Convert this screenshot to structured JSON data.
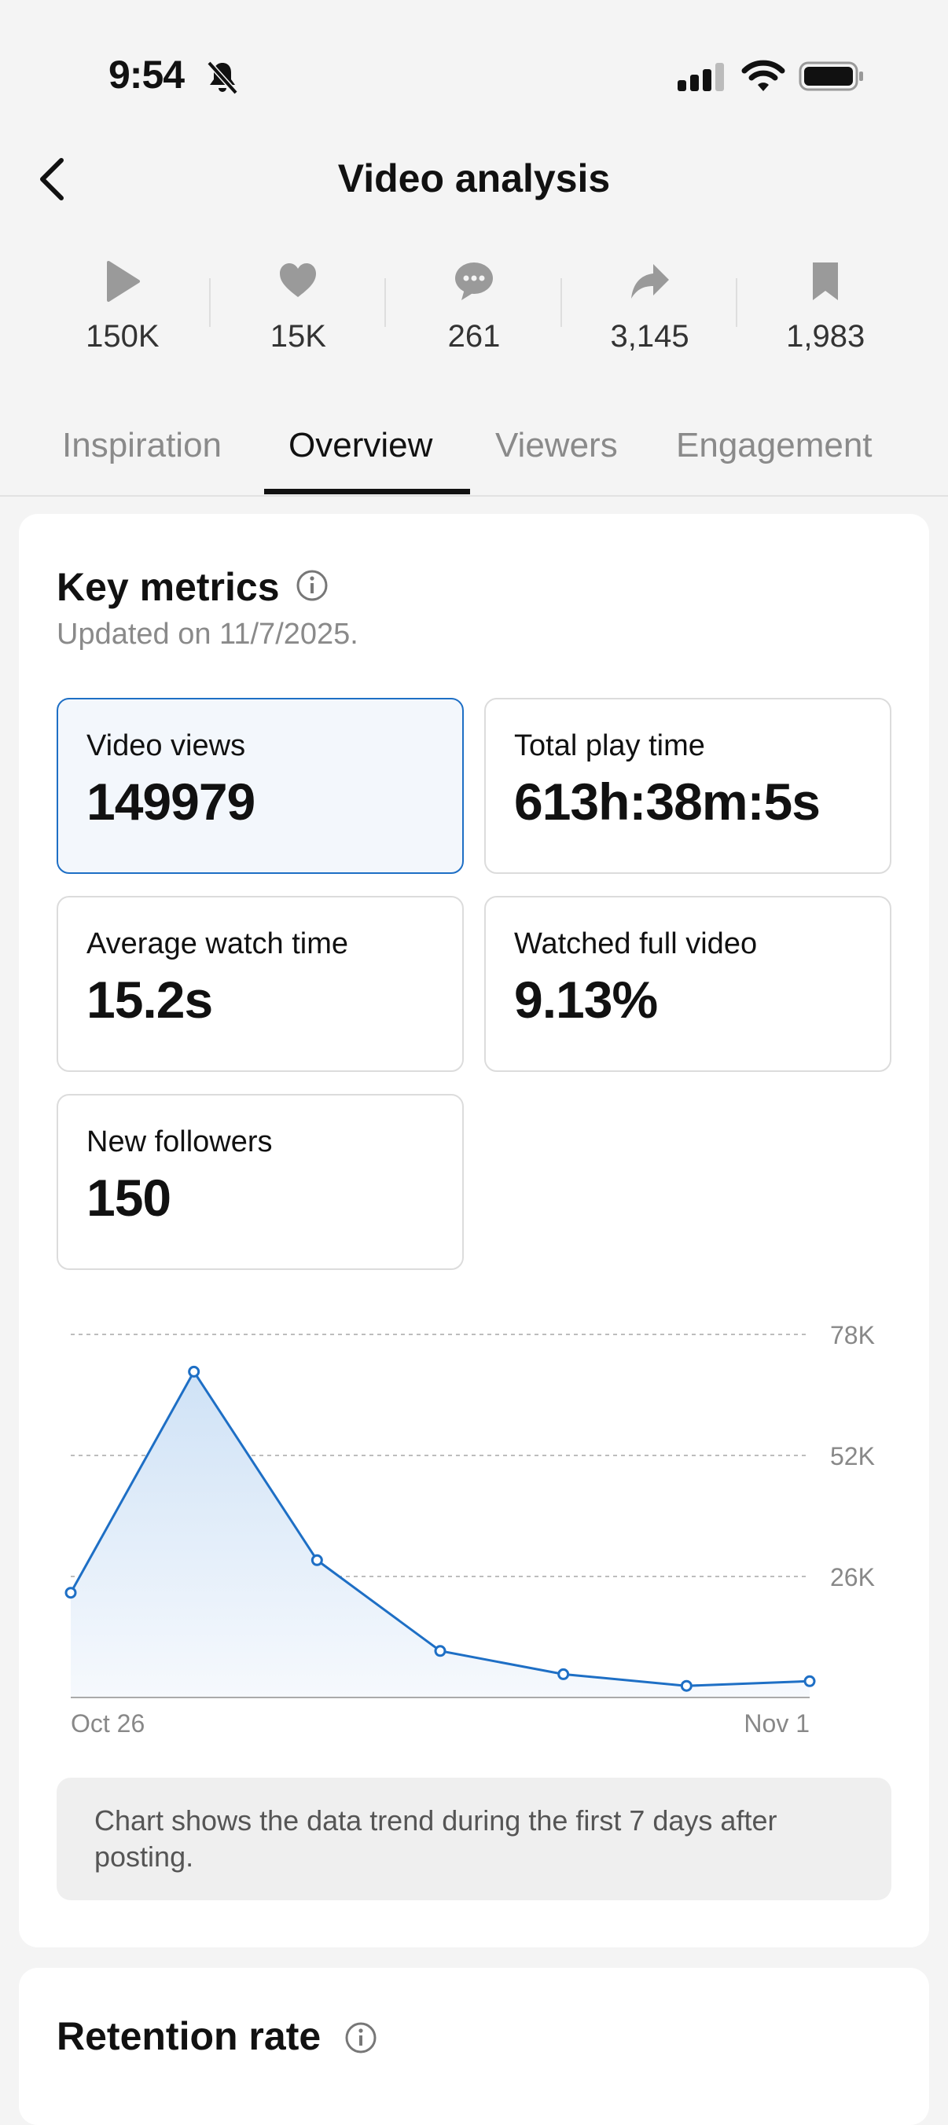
{
  "status_bar": {
    "time": "9:54"
  },
  "header": {
    "title": "Video analysis"
  },
  "stats": [
    {
      "icon": "play-icon",
      "value": "150K"
    },
    {
      "icon": "heart-icon",
      "value": "15K"
    },
    {
      "icon": "comment-icon",
      "value": "261"
    },
    {
      "icon": "share-icon",
      "value": "3,145"
    },
    {
      "icon": "bookmark-icon",
      "value": "1,983"
    }
  ],
  "tabs": [
    {
      "label": "Inspiration"
    },
    {
      "label": "Overview",
      "active": true
    },
    {
      "label": "Viewers"
    },
    {
      "label": "Engagement"
    }
  ],
  "key_metrics": {
    "title": "Key metrics",
    "updated": "Updated on 11/7/2025.",
    "cards": [
      {
        "label": "Video views",
        "value": "149979",
        "selected": true
      },
      {
        "label": "Total play time",
        "value": "613h:38m:5s"
      },
      {
        "label": "Average watch time",
        "value": "15.2s"
      },
      {
        "label": "Watched full video",
        "value": "9.13%"
      },
      {
        "label": "New followers",
        "value": "150"
      }
    ]
  },
  "chart_data": {
    "type": "area",
    "x": [
      "Oct 26",
      "Oct 27",
      "Oct 28",
      "Oct 29",
      "Oct 30",
      "Oct 31",
      "Nov 1"
    ],
    "x_tick_labels": [
      "Oct 26",
      "Nov 1"
    ],
    "values": [
      22500,
      70000,
      29500,
      10000,
      5000,
      2500,
      3500
    ],
    "y_ticks": [
      "78K",
      "52K",
      "26K"
    ],
    "ylim": [
      0,
      78000
    ],
    "grid": "dashed horizontal",
    "line_color": "#1e6fc5",
    "fill_color": "#cfe2f6"
  },
  "note": "Chart shows the data trend during the first 7 days after posting.",
  "retention": {
    "title": "Retention rate"
  }
}
